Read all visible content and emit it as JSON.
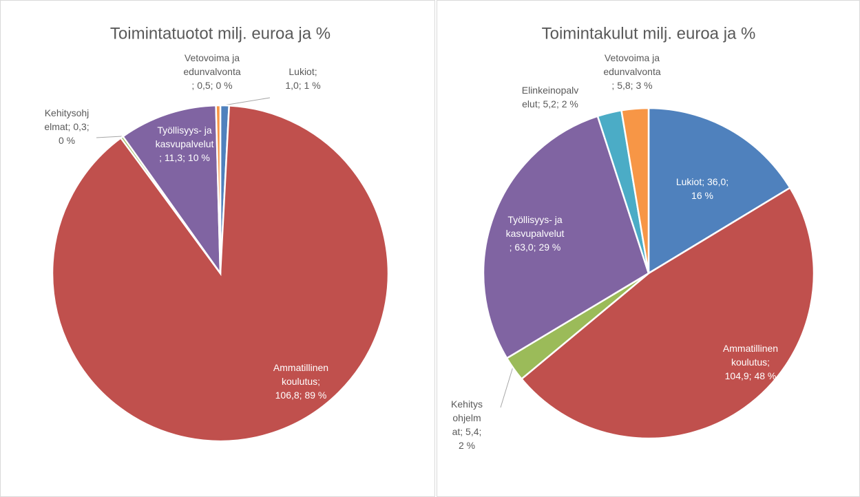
{
  "chart_data": [
    {
      "type": "pie",
      "title": "Toimintatuotot milj. euroa ja %",
      "values": [
        1.0,
        106.8,
        0.3,
        11.3,
        0.5
      ],
      "value_labels": [
        "Lukiot; 1,0; 1 %",
        "Ammatillinen koulutus; 106,8; 89 %",
        "Kehitysohjelmat; 0,3; 0 %",
        "Työllisyys- ja kasvupalvelut; 11,3; 10 %",
        "Vetovoima ja edunvalvonta; 0,5; 0 %"
      ],
      "colors": [
        "#4f81bd",
        "#c0504d",
        "#9bbb59",
        "#8064a2",
        "#f79646"
      ]
    },
    {
      "type": "pie",
      "title": "Toimintakulut milj. euroa ja %",
      "values": [
        36.0,
        104.9,
        5.4,
        63.0,
        5.2,
        5.8
      ],
      "value_labels": [
        "Lukiot; 36,0; 16 %",
        "Ammatillinen koulutus; 104,9; 48 %",
        "Kehitysohjelmat; 5,4; 2 %",
        "Työllisyys- ja kasvupalvelut; 63,0; 29 %",
        "Elinkeinopalvelut; 5,2; 2 %",
        "Vetovoima ja edunvalvonta; 5,8; 3 %"
      ],
      "colors": [
        "#4f81bd",
        "#c0504d",
        "#9bbb59",
        "#8064a2",
        "#4bacc6",
        "#f79646"
      ]
    }
  ]
}
